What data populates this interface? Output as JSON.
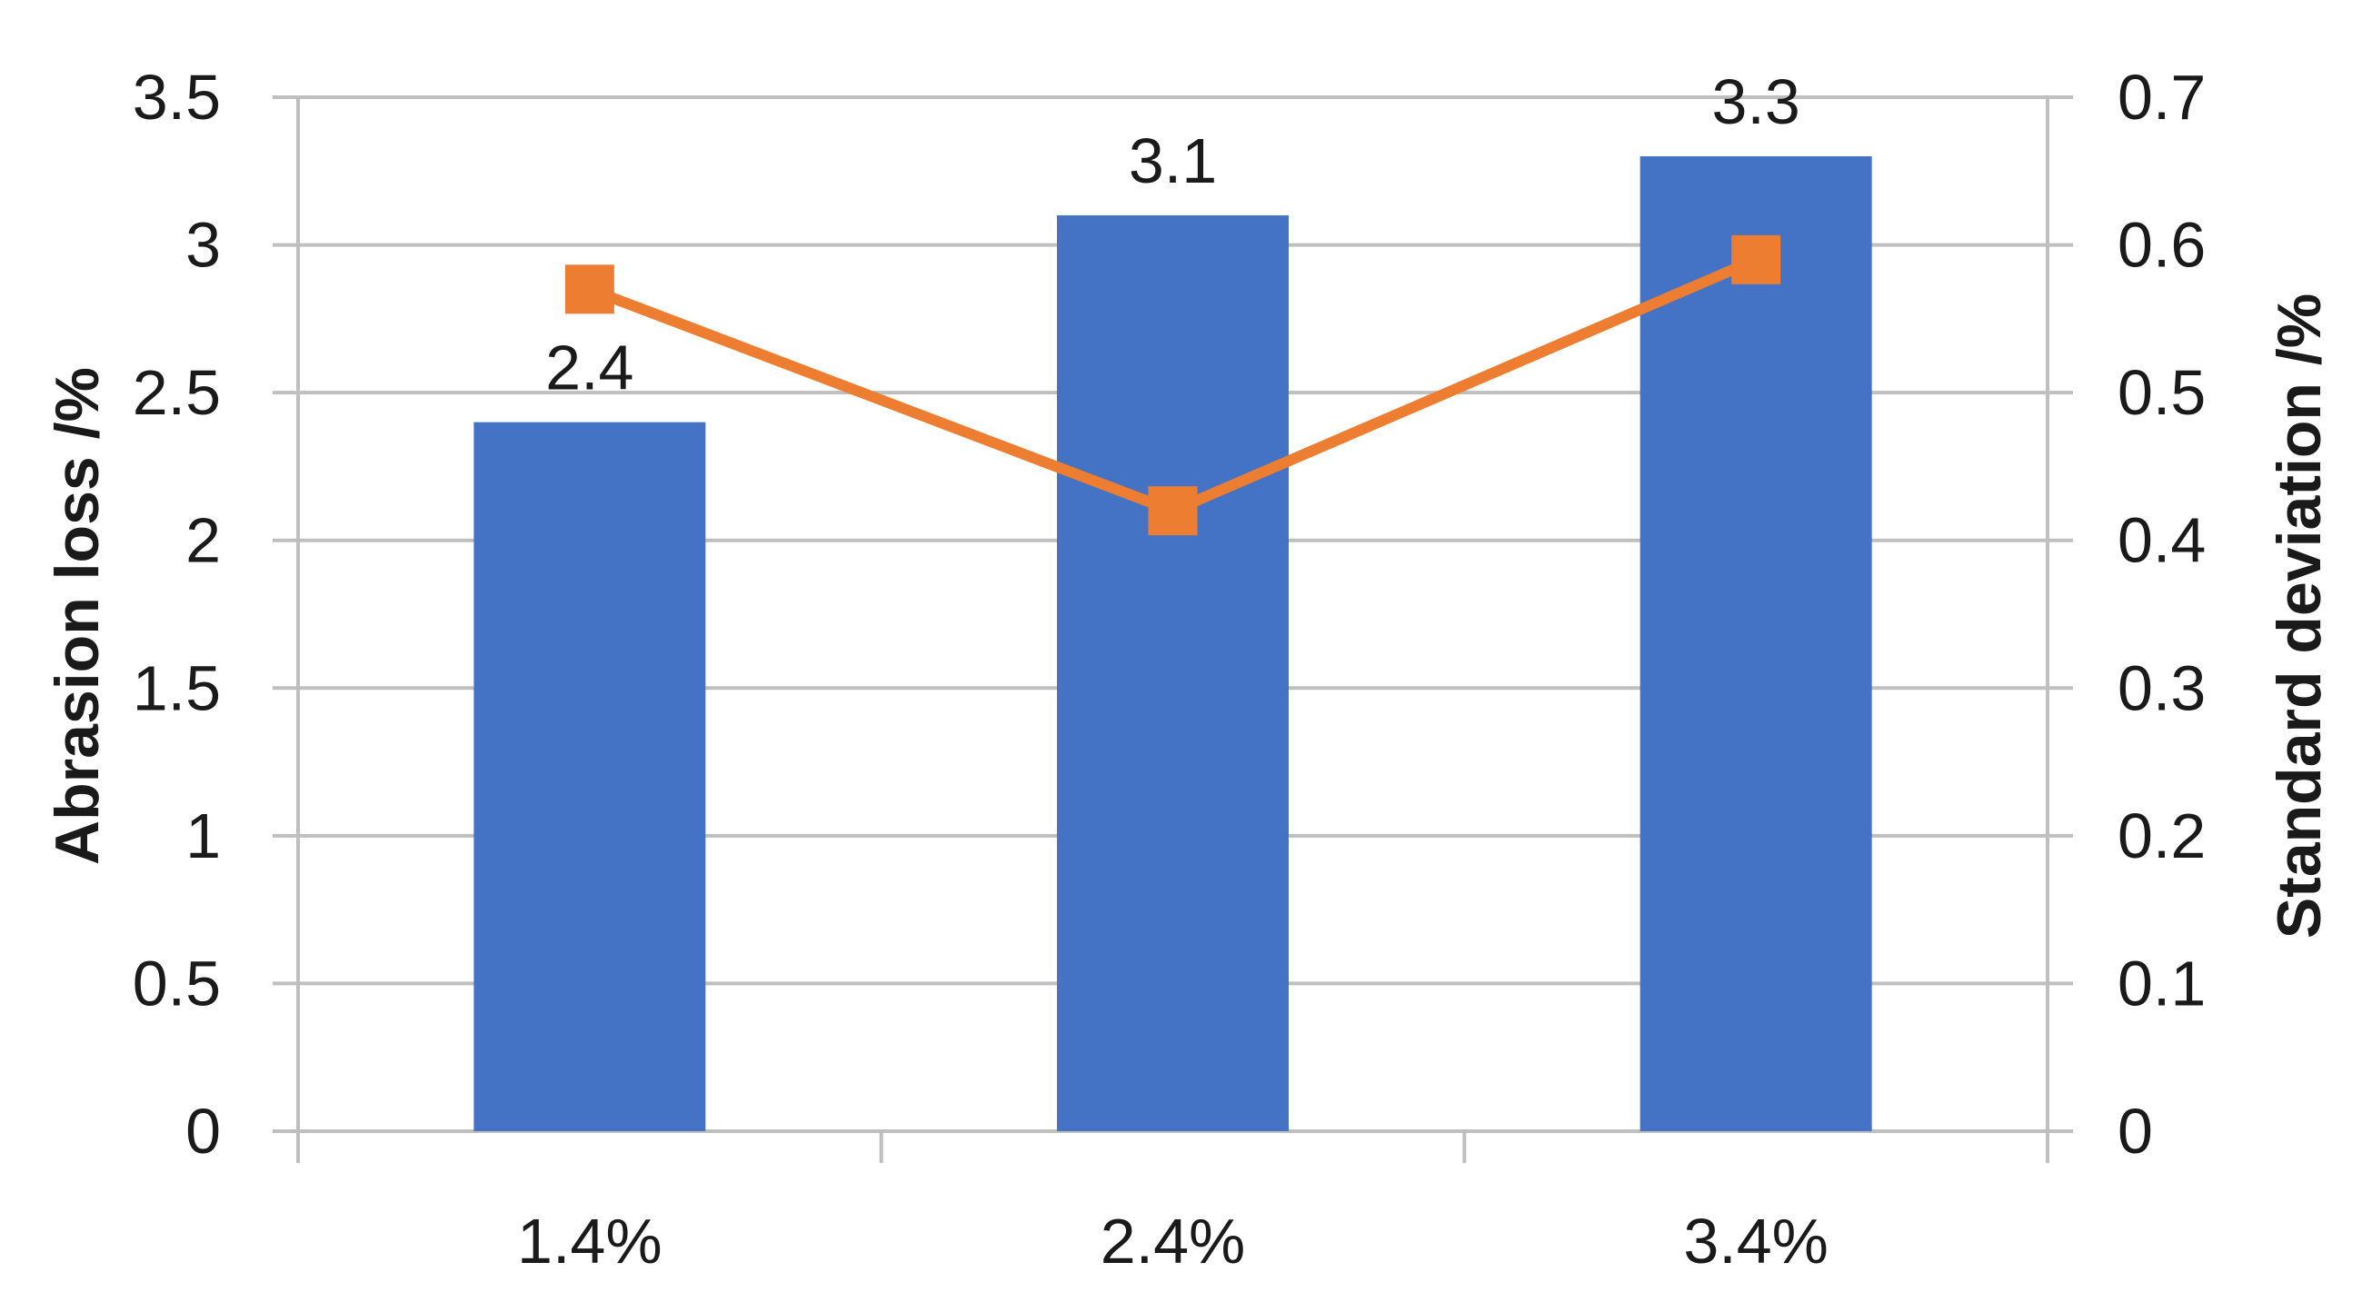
{
  "chart_data": {
    "type": "bar",
    "categories": [
      "1.4%",
      "2.4%",
      "3.4%"
    ],
    "series": [
      {
        "type": "bar",
        "axis": "left",
        "color": "#4472C4",
        "values": [
          2.4,
          3.1,
          3.3
        ],
        "data_labels": [
          "2.4",
          "3.1",
          "3.3"
        ]
      },
      {
        "type": "line",
        "axis": "right",
        "color": "#ED7D31",
        "marker": "square",
        "values": [
          0.57,
          0.42,
          0.59
        ]
      }
    ],
    "xlabel": "",
    "ylabel": "Abrasion loss /%",
    "y2label": "Standard deviation /%",
    "ylim": [
      0,
      3.5
    ],
    "y2lim": [
      0,
      0.7
    ],
    "yticks": [
      "0",
      "0.5",
      "1",
      "1.5",
      "2",
      "2.5",
      "3",
      "3.5"
    ],
    "y2ticks": [
      "0",
      "0.1",
      "0.2",
      "0.3",
      "0.4",
      "0.5",
      "0.6",
      "0.7"
    ],
    "grid": true,
    "legend": "none"
  }
}
